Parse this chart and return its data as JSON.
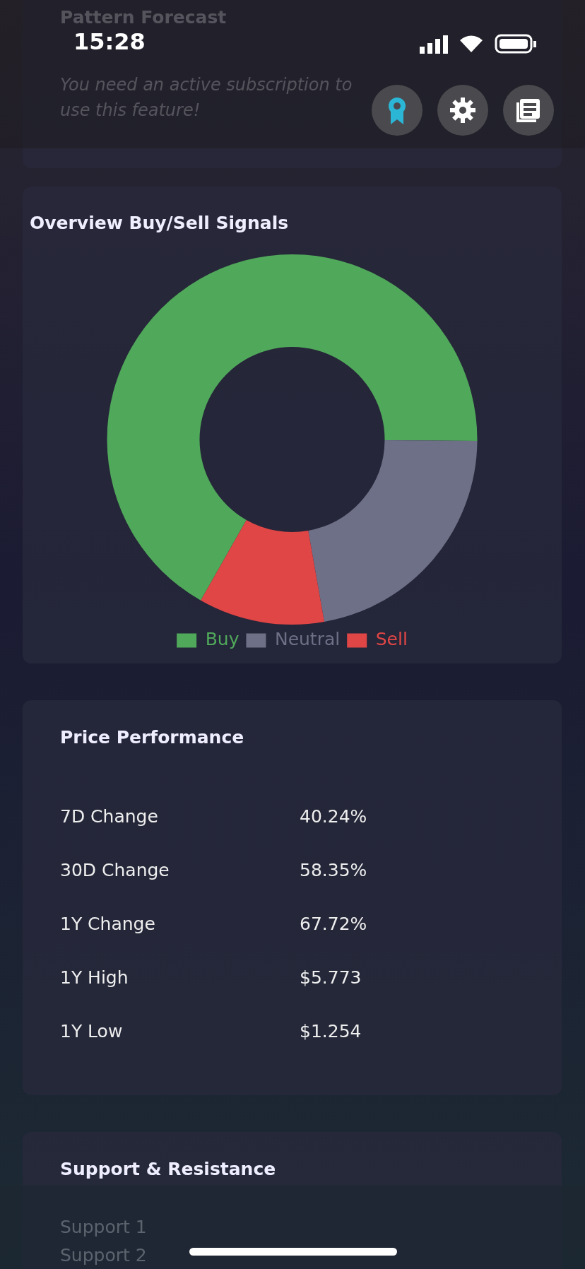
{
  "chart_data": [
    {
      "type": "other",
      "title": "Pattern Forecast",
      "annotations": [
        "15:28",
        "You need an active subscription to use this feature!"
      ]
    },
    {
      "type": "donut",
      "title": "Overview Buy/Sell Signals",
      "categories": [
        "Buy",
        "Neutral",
        "Sell"
      ],
      "values": [
        66.9,
        22.1,
        11.0
      ],
      "colors": [
        "#50a85a",
        "#6e7087",
        "#e04646"
      ],
      "legend": "bottom"
    },
    {
      "type": "other",
      "title": "Price Performance",
      "categories": [
        "7D Change",
        "30D Change",
        "1Y Change",
        "1Y High",
        "1Y Low"
      ],
      "value_labels": [
        "40.24%",
        "58.35%",
        "67.72%",
        "$5.773",
        "$1.254"
      ]
    },
    {
      "type": "other",
      "title": "Support & Resistance",
      "annotations": [
        "Support 1",
        "Support 2"
      ]
    }
  ]
}
